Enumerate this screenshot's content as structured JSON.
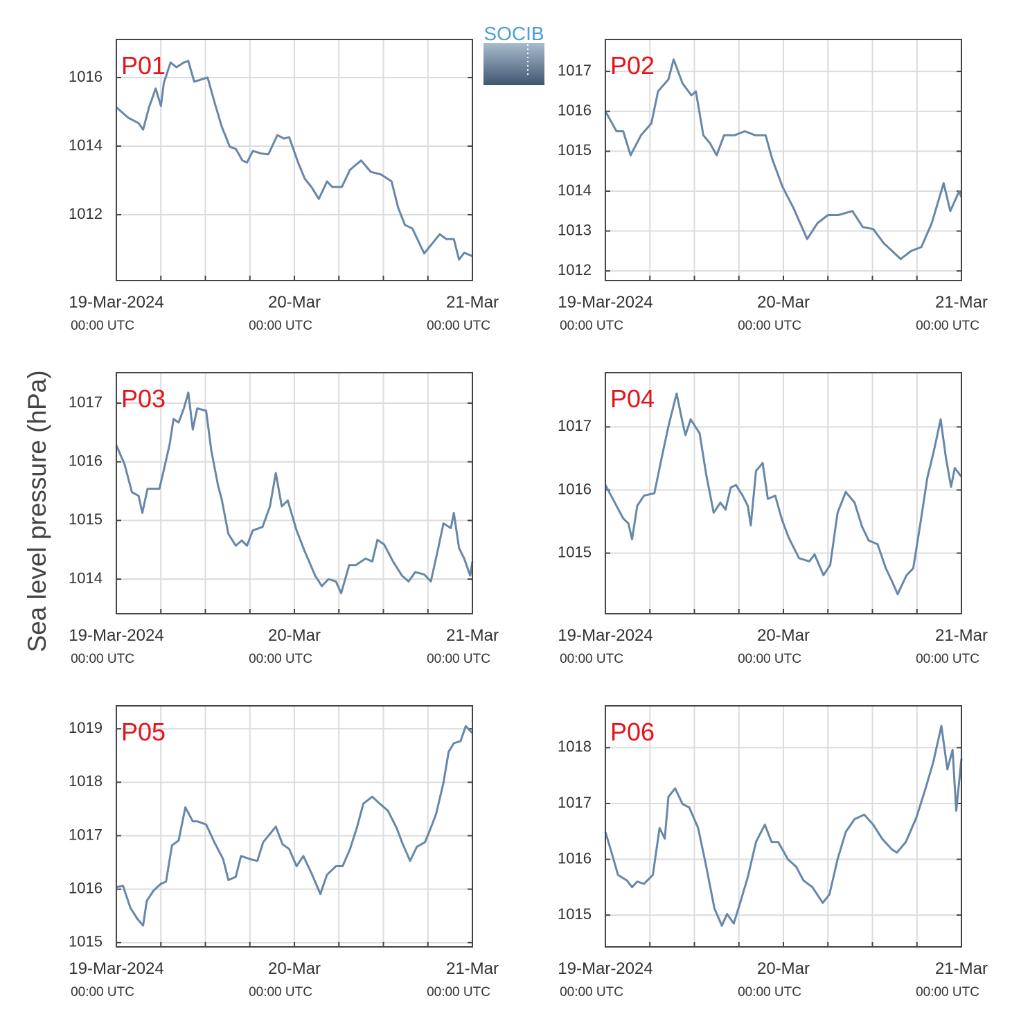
{
  "ylabel": "Sea level pressure (hPa)",
  "logo": "SOCIB",
  "chart_data": [
    {
      "type": "line",
      "title": "P01",
      "color": "#6787a9",
      "grid": true,
      "xlim": [
        0,
        48
      ],
      "xticks": [
        {
          "value": 0,
          "label": "19-Mar-2024"
        },
        {
          "value": 24,
          "label": "20-Mar"
        },
        {
          "value": 48,
          "label": "21-Mar"
        }
      ],
      "xtick_sublabels": [
        "00:00 UTC",
        "00:00 UTC",
        "00:00 UTC"
      ],
      "xgrid": [
        6,
        12,
        18,
        30,
        36,
        42
      ],
      "ylim": [
        1010.08,
        1017.11
      ],
      "yticks": [
        1012,
        1014,
        1016
      ],
      "x": [
        0,
        1.6,
        3,
        3.6,
        4.4,
        5.3,
        6,
        6.4,
        7.3,
        8.1,
        9.1,
        9.7,
        10.5,
        11.4,
        12.3,
        13.3,
        14.2,
        15.3,
        16.1,
        17,
        17.6,
        18.4,
        19.6,
        20.5,
        21.7,
        22.6,
        23.3,
        24.5,
        25.4,
        26.3,
        27.3,
        28.4,
        29.1,
        30.4,
        31.5,
        33,
        34.3,
        35.7,
        37.1,
        38,
        38.9,
        39.9,
        40.8,
        41.5,
        42.7,
        43.6,
        44.5,
        45.5,
        46.2,
        46.9,
        48
      ],
      "values": [
        1015.13,
        1014.83,
        1014.67,
        1014.48,
        1015.13,
        1015.68,
        1015.17,
        1015.84,
        1016.44,
        1016.3,
        1016.44,
        1016.48,
        1015.88,
        1015.94,
        1016.0,
        1015.23,
        1014.57,
        1013.98,
        1013.92,
        1013.58,
        1013.52,
        1013.86,
        1013.78,
        1013.76,
        1014.32,
        1014.22,
        1014.26,
        1013.52,
        1013.05,
        1012.81,
        1012.46,
        1012.97,
        1012.81,
        1012.81,
        1013.31,
        1013.58,
        1013.25,
        1013.17,
        1012.97,
        1012.2,
        1011.7,
        1011.6,
        1011.19,
        1010.87,
        1011.19,
        1011.43,
        1011.29,
        1011.29,
        1010.69,
        1010.89,
        1010.79
      ]
    },
    {
      "type": "line",
      "title": "P02",
      "color": "#6787a9",
      "grid": true,
      "xlim": [
        0,
        48
      ],
      "xticks": [
        {
          "value": 0,
          "label": "19-Mar-2024"
        },
        {
          "value": 24,
          "label": "20-Mar"
        },
        {
          "value": 48,
          "label": "21-Mar"
        }
      ],
      "xtick_sublabels": [
        "00:00 UTC",
        "00:00 UTC",
        "00:00 UTC"
      ],
      "xgrid": [
        6,
        12,
        18,
        30,
        36,
        42
      ],
      "ylim": [
        1011.76,
        1017.8
      ],
      "yticks": [
        1012,
        1013,
        1014,
        1015,
        1016,
        1017
      ],
      "x": [
        0,
        1.5,
        2.4,
        3.4,
        4.8,
        6.2,
        7.1,
        8.5,
        9.2,
        10.4,
        11.6,
        12.2,
        13.2,
        14.1,
        15,
        16,
        17.4,
        18.8,
        20.2,
        21.6,
        22.5,
        23.9,
        25.3,
        27.2,
        28.6,
        30,
        31.4,
        33.3,
        34.7,
        36.1,
        37.5,
        39.8,
        41.2,
        42.6,
        44,
        45.6,
        46.5,
        47.7,
        48
      ],
      "values": [
        1016.0,
        1015.5,
        1015.5,
        1014.9,
        1015.4,
        1015.7,
        1016.5,
        1016.8,
        1017.3,
        1016.7,
        1016.4,
        1016.5,
        1015.4,
        1015.2,
        1014.9,
        1015.4,
        1015.4,
        1015.5,
        1015.4,
        1015.4,
        1014.8,
        1014.1,
        1013.6,
        1012.8,
        1013.2,
        1013.4,
        1013.4,
        1013.5,
        1013.1,
        1013.05,
        1012.7,
        1012.3,
        1012.5,
        1012.6,
        1013.2,
        1014.2,
        1013.5,
        1014.0,
        1013.85
      ]
    },
    {
      "type": "line",
      "title": "P03",
      "color": "#6787a9",
      "grid": true,
      "xlim": [
        0,
        48
      ],
      "xticks": [
        {
          "value": 0,
          "label": "19-Mar-2024"
        },
        {
          "value": 24,
          "label": "20-Mar"
        },
        {
          "value": 48,
          "label": "21-Mar"
        }
      ],
      "xtick_sublabels": [
        "00:00 UTC",
        "00:00 UTC",
        "00:00 UTC"
      ],
      "xgrid": [
        6,
        12,
        18,
        30,
        36,
        42
      ],
      "ylim": [
        1013.41,
        1017.52
      ],
      "yticks": [
        1014,
        1015,
        1016,
        1017
      ],
      "x": [
        0,
        1.1,
        2.1,
        3,
        3.5,
        4.2,
        5,
        5.8,
        6.4,
        7.2,
        7.7,
        8.4,
        9.1,
        9.7,
        10.3,
        10.9,
        12.1,
        12.8,
        13.7,
        14.2,
        15.1,
        16.1,
        16.9,
        17.6,
        18.4,
        19.7,
        20.7,
        21.5,
        22.3,
        23.1,
        24.3,
        25.4,
        26.8,
        27.7,
        28.6,
        29.6,
        30.3,
        31.4,
        32.3,
        33.6,
        34.5,
        35.2,
        36.1,
        37.3,
        38.5,
        39.4,
        40.3,
        41.5,
        42.4,
        43.4,
        44.1,
        45.1,
        45.5,
        46.2,
        46.9,
        47.7,
        48
      ],
      "values": [
        1016.28,
        1015.96,
        1015.48,
        1015.42,
        1015.13,
        1015.54,
        1015.54,
        1015.54,
        1015.86,
        1016.31,
        1016.73,
        1016.67,
        1016.91,
        1017.18,
        1016.55,
        1016.91,
        1016.87,
        1016.19,
        1015.6,
        1015.36,
        1014.77,
        1014.57,
        1014.66,
        1014.57,
        1014.83,
        1014.89,
        1015.24,
        1015.81,
        1015.24,
        1015.34,
        1014.83,
        1014.47,
        1014.06,
        1013.88,
        1014.0,
        1013.96,
        1013.76,
        1014.24,
        1014.24,
        1014.35,
        1014.3,
        1014.67,
        1014.59,
        1014.3,
        1014.06,
        1013.96,
        1014.12,
        1014.08,
        1013.96,
        1014.53,
        1014.95,
        1014.87,
        1015.13,
        1014.53,
        1014.35,
        1014.06,
        1014.3
      ]
    },
    {
      "type": "line",
      "title": "P04",
      "color": "#6787a9",
      "grid": true,
      "xlim": [
        0,
        48
      ],
      "xticks": [
        {
          "value": 0,
          "label": "19-Mar-2024"
        },
        {
          "value": 24,
          "label": "20-Mar"
        },
        {
          "value": 48,
          "label": "21-Mar"
        }
      ],
      "xtick_sublabels": [
        "00:00 UTC",
        "00:00 UTC",
        "00:00 UTC"
      ],
      "xgrid": [
        6,
        12,
        18,
        30,
        36,
        42
      ],
      "ylim": [
        1014.04,
        1017.86
      ],
      "yticks": [
        1015,
        1016,
        1017
      ],
      "x": [
        0,
        1,
        2.4,
        3.1,
        3.6,
        4.3,
        5.2,
        6.6,
        7.6,
        8.5,
        9.6,
        10.4,
        10.8,
        11.5,
        12.7,
        13.6,
        14.6,
        15.5,
        16.2,
        16.9,
        17.6,
        18.5,
        19.2,
        19.6,
        20.3,
        21.2,
        21.9,
        22.9,
        23.8,
        24.7,
        26.1,
        27.5,
        28.2,
        29.4,
        30.3,
        31.3,
        32.4,
        33.6,
        34.6,
        35.5,
        36.7,
        37.8,
        38.7,
        39.4,
        40.6,
        41.5,
        42.4,
        43.4,
        44.3,
        45.2,
        45.9,
        46.6,
        47.1,
        48
      ],
      "values": [
        1016.08,
        1015.86,
        1015.55,
        1015.47,
        1015.22,
        1015.75,
        1015.91,
        1015.95,
        1016.52,
        1017.01,
        1017.53,
        1017.07,
        1016.87,
        1017.12,
        1016.9,
        1016.24,
        1015.64,
        1015.8,
        1015.69,
        1016.04,
        1016.08,
        1015.91,
        1015.75,
        1015.44,
        1016.3,
        1016.43,
        1015.86,
        1015.91,
        1015.53,
        1015.25,
        1014.92,
        1014.87,
        1014.98,
        1014.65,
        1014.81,
        1015.64,
        1015.97,
        1015.8,
        1015.42,
        1015.2,
        1015.14,
        1014.76,
        1014.54,
        1014.35,
        1014.65,
        1014.76,
        1015.42,
        1016.19,
        1016.63,
        1017.12,
        1016.52,
        1016.05,
        1016.35,
        1016.21
      ]
    },
    {
      "type": "line",
      "title": "P05",
      "color": "#6787a9",
      "grid": true,
      "xlim": [
        0,
        48
      ],
      "xticks": [
        {
          "value": 0,
          "label": "19-Mar-2024"
        },
        {
          "value": 24,
          "label": "20-Mar"
        },
        {
          "value": 48,
          "label": "21-Mar"
        }
      ],
      "xtick_sublabels": [
        "00:00 UTC",
        "00:00 UTC",
        "00:00 UTC"
      ],
      "xgrid": [
        6,
        12,
        18,
        30,
        36,
        42
      ],
      "ylim": [
        1014.92,
        1019.43
      ],
      "yticks": [
        1015,
        1016,
        1017,
        1018,
        1019
      ],
      "x": [
        0,
        0.9,
        1.9,
        2.8,
        3.6,
        4.1,
        5,
        6,
        6.7,
        7.5,
        8.4,
        9.3,
        10.3,
        10.9,
        12.1,
        13.2,
        14.4,
        15.1,
        16.1,
        16.8,
        18.1,
        19,
        19.8,
        21.5,
        22.4,
        23.3,
        24.3,
        25.2,
        26.3,
        27.5,
        28.4,
        29.6,
        30.5,
        31.5,
        32.4,
        33.3,
        34.5,
        35.5,
        36.6,
        37.8,
        38.5,
        39.6,
        40.5,
        41.6,
        42.2,
        43.1,
        44.1,
        44.8,
        45.5,
        46.4,
        47.1,
        48
      ],
      "values": [
        1016.04,
        1016.06,
        1015.65,
        1015.45,
        1015.32,
        1015.78,
        1015.97,
        1016.1,
        1016.14,
        1016.82,
        1016.91,
        1017.53,
        1017.27,
        1017.27,
        1017.21,
        1016.88,
        1016.56,
        1016.17,
        1016.23,
        1016.62,
        1016.56,
        1016.53,
        1016.88,
        1017.17,
        1016.84,
        1016.75,
        1016.43,
        1016.62,
        1016.3,
        1015.91,
        1016.27,
        1016.43,
        1016.43,
        1016.75,
        1017.14,
        1017.6,
        1017.73,
        1017.6,
        1017.47,
        1017.14,
        1016.88,
        1016.53,
        1016.79,
        1016.88,
        1017.08,
        1017.4,
        1017.99,
        1018.57,
        1018.73,
        1018.77,
        1019.05,
        1018.92
      ]
    },
    {
      "type": "line",
      "title": "P06",
      "color": "#6787a9",
      "grid": true,
      "xlim": [
        0,
        48
      ],
      "xticks": [
        {
          "value": 0,
          "label": "19-Mar-2024"
        },
        {
          "value": 24,
          "label": "20-Mar"
        },
        {
          "value": 48,
          "label": "21-Mar"
        }
      ],
      "xtick_sublabels": [
        "00:00 UTC",
        "00:00 UTC",
        "00:00 UTC"
      ],
      "xgrid": [
        6,
        12,
        18,
        30,
        36,
        42
      ],
      "ylim": [
        1014.43,
        1018.75
      ],
      "yticks": [
        1015,
        1016,
        1017,
        1018
      ],
      "x": [
        0,
        0.7,
        1.7,
        2.9,
        3.6,
        4.3,
        5.2,
        6.4,
        7.3,
        8,
        8.5,
        9.4,
        10.4,
        11.3,
        12.5,
        13.6,
        14.7,
        15.7,
        16.4,
        17.3,
        18.1,
        19.2,
        20.3,
        21.5,
        22.4,
        23.3,
        24.6,
        25.7,
        26.7,
        27.9,
        29.3,
        30.2,
        31.3,
        32.4,
        33.6,
        34.9,
        36.1,
        37.3,
        38.6,
        39.3,
        40.5,
        41.9,
        43.1,
        44.2,
        45.3,
        46.1,
        46.8,
        47.3,
        48
      ],
      "values": [
        1016.49,
        1016.18,
        1015.72,
        1015.62,
        1015.5,
        1015.6,
        1015.56,
        1015.72,
        1016.56,
        1016.37,
        1017.12,
        1017.27,
        1016.99,
        1016.93,
        1016.56,
        1015.87,
        1015.12,
        1014.81,
        1015.02,
        1014.85,
        1015.19,
        1015.68,
        1016.31,
        1016.62,
        1016.31,
        1016.31,
        1016.0,
        1015.87,
        1015.62,
        1015.5,
        1015.22,
        1015.37,
        1016.0,
        1016.49,
        1016.72,
        1016.8,
        1016.62,
        1016.37,
        1016.18,
        1016.12,
        1016.31,
        1016.74,
        1017.24,
        1017.74,
        1018.39,
        1017.61,
        1017.96,
        1016.87,
        1017.8
      ]
    }
  ]
}
